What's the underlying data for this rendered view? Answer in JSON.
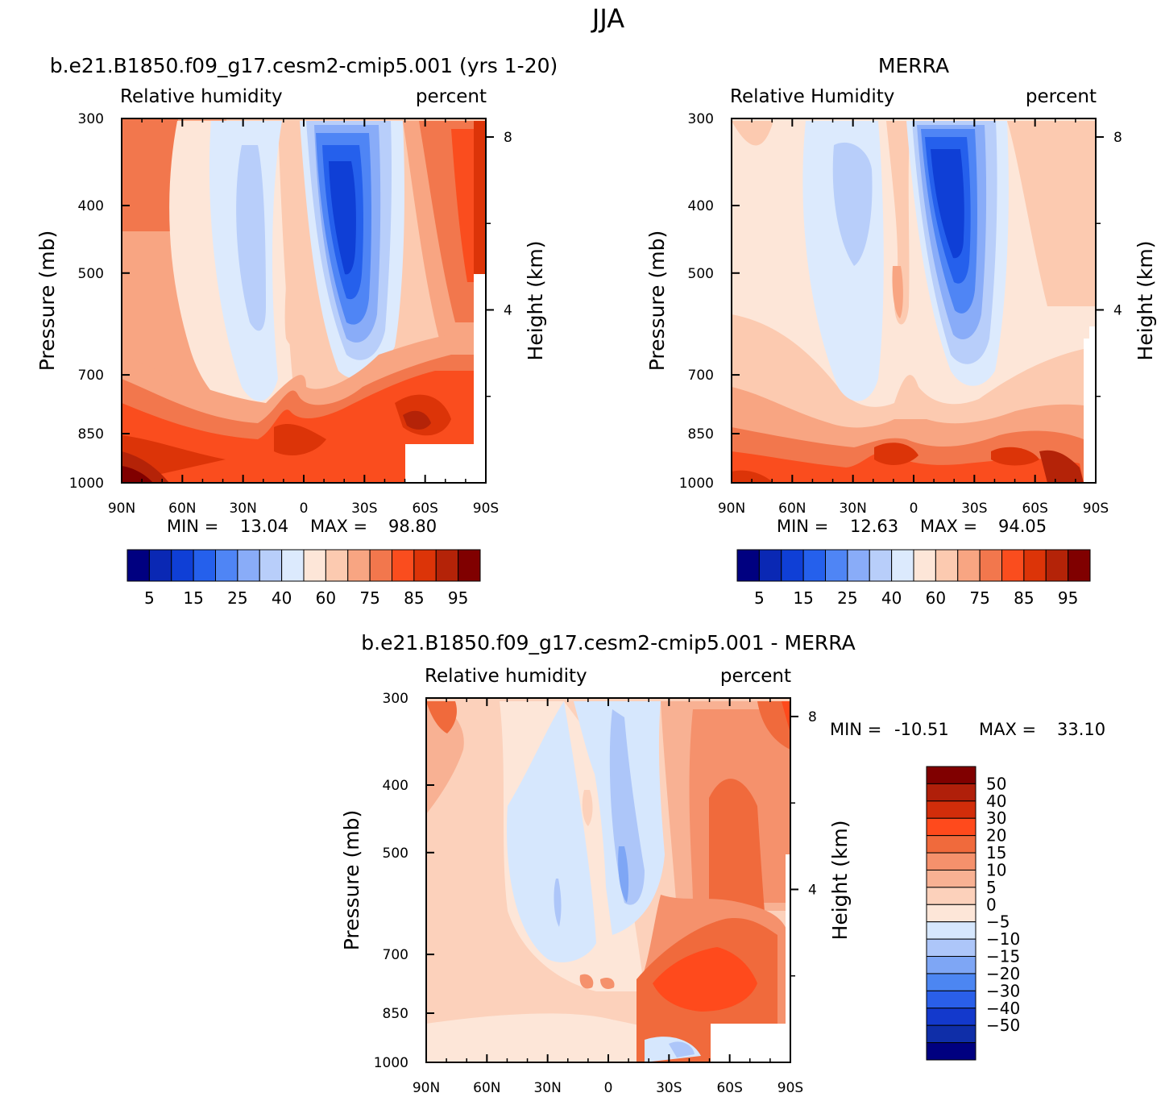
{
  "page_title": "JJA",
  "colors": {
    "rh": [
      "#000080",
      "#0a28b4",
      "#0f3fd6",
      "#2560ec",
      "#4f85f5",
      "#89acf8",
      "#b8cefa",
      "#dceafd",
      "#fde6d8",
      "#fccab0",
      "#f8a582",
      "#f2774d",
      "#fa4d1e",
      "#dc3408",
      "#b42308",
      "#800000"
    ],
    "diff": [
      "#000080",
      "#0f2ea8",
      "#1339cc",
      "#2a5fe9",
      "#4c86f2",
      "#7ea6f5",
      "#adc6f9",
      "#d6e7fd",
      "#fde6d8",
      "#fcd1bb",
      "#f8b193",
      "#f5916c",
      "#f06a3c",
      "#ff4a1c",
      "#d22d0a",
      "#b01f0a",
      "#800000"
    ]
  },
  "chart_data": [
    {
      "type": "heatmap",
      "title": "b.e21.B1850.f09_g17.cesm2-cmip5.001 (yrs 1-20)",
      "left_label": "Relative humidity",
      "right_label": "percent",
      "ylabel": "Pressure (mb)",
      "y2label": "Height (km)",
      "x_ticks": [
        "90N",
        "60N",
        "30N",
        "0",
        "30S",
        "60S",
        "90S"
      ],
      "y_ticks": [
        "300",
        "400",
        "500",
        "700",
        "850",
        "1000"
      ],
      "y2_ticks": [
        "8",
        "4"
      ],
      "min_label": "MIN =",
      "min_value": "13.04",
      "max_label": "MAX =",
      "max_value": "98.80",
      "colorbar_labels": [
        "5",
        "15",
        "25",
        "40",
        "60",
        "75",
        "85",
        "95"
      ]
    },
    {
      "type": "heatmap",
      "title": "MERRA",
      "left_label": "Relative Humidity",
      "right_label": "percent",
      "ylabel": "Pressure (mb)",
      "y2label": "Height (km)",
      "x_ticks": [
        "90N",
        "60N",
        "30N",
        "0",
        "30S",
        "60S",
        "90S"
      ],
      "y_ticks": [
        "300",
        "400",
        "500",
        "700",
        "850",
        "1000"
      ],
      "y2_ticks": [
        "8",
        "4"
      ],
      "min_label": "MIN =",
      "min_value": "12.63",
      "max_label": "MAX =",
      "max_value": "94.05",
      "colorbar_labels": [
        "5",
        "15",
        "25",
        "40",
        "60",
        "75",
        "85",
        "95"
      ]
    },
    {
      "type": "heatmap",
      "title": "b.e21.B1850.f09_g17.cesm2-cmip5.001 - MERRA",
      "left_label": "Relative humidity",
      "right_label": "percent",
      "ylabel": "Pressure (mb)",
      "y2label": "Height (km)",
      "x_ticks": [
        "90N",
        "60N",
        "30N",
        "0",
        "30S",
        "60S",
        "90S"
      ],
      "y_ticks": [
        "300",
        "400",
        "500",
        "700",
        "850",
        "1000"
      ],
      "y2_ticks": [
        "8",
        "4"
      ],
      "min_label": "MIN =",
      "min_value": "-10.51",
      "max_label": "MAX =",
      "max_value": "33.10",
      "colorbar_labels": [
        "50",
        "40",
        "30",
        "20",
        "15",
        "10",
        "5",
        "0",
        "-5",
        "-10",
        "-15",
        "-20",
        "-30",
        "-40",
        "-50"
      ]
    }
  ]
}
